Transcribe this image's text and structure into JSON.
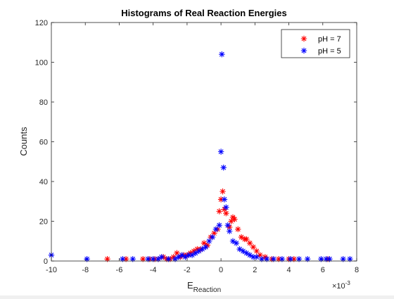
{
  "chart_data": {
    "type": "scatter",
    "title": "Histograms of Real Reaction Energies",
    "ylabel": "Counts",
    "xlabel_main": "E",
    "xlabel_sub": "Reaction",
    "x_multiplier_base": "×10",
    "x_multiplier_exp": "-3",
    "xlim": [
      -10,
      8
    ],
    "ylim": [
      0,
      120
    ],
    "xticks": [
      -10,
      -8,
      -6,
      -4,
      -2,
      0,
      2,
      4,
      6,
      8
    ],
    "yticks": [
      0,
      20,
      40,
      60,
      80,
      100,
      120
    ],
    "grid": false,
    "legend_position": "top-right",
    "marker": "*",
    "series": [
      {
        "name": "pH = 7",
        "color": "#ff0000",
        "points": [
          [
            -6.7,
            1
          ],
          [
            -5.6,
            1
          ],
          [
            -4.6,
            1
          ],
          [
            -4.2,
            1
          ],
          [
            -3.9,
            1
          ],
          [
            -3.7,
            1
          ],
          [
            -3.4,
            2
          ],
          [
            -3.2,
            1
          ],
          [
            -3.0,
            1
          ],
          [
            -2.8,
            2
          ],
          [
            -2.6,
            4
          ],
          [
            -2.4,
            2
          ],
          [
            -2.2,
            3
          ],
          [
            -2.0,
            3
          ],
          [
            -1.8,
            4
          ],
          [
            -1.6,
            5
          ],
          [
            -1.4,
            6
          ],
          [
            -1.2,
            6
          ],
          [
            -1.0,
            9
          ],
          [
            -0.8,
            8
          ],
          [
            -0.6,
            12
          ],
          [
            -0.4,
            14
          ],
          [
            -0.2,
            16
          ],
          [
            -0.1,
            25
          ],
          [
            0.0,
            31
          ],
          [
            0.1,
            35
          ],
          [
            0.2,
            26
          ],
          [
            0.3,
            24
          ],
          [
            0.5,
            17
          ],
          [
            0.6,
            20
          ],
          [
            0.7,
            22
          ],
          [
            0.8,
            21
          ],
          [
            1.0,
            16
          ],
          [
            1.2,
            12
          ],
          [
            1.4,
            11
          ],
          [
            1.5,
            11
          ],
          [
            1.7,
            9
          ],
          [
            1.9,
            7
          ],
          [
            2.1,
            5
          ],
          [
            2.3,
            3
          ],
          [
            2.6,
            2
          ],
          [
            3.0,
            1
          ],
          [
            3.4,
            1
          ],
          [
            4.0,
            1
          ],
          [
            4.3,
            1
          ],
          [
            6.3,
            1
          ]
        ]
      },
      {
        "name": "pH = 5",
        "color": "#0000ff",
        "points": [
          [
            -10.0,
            3
          ],
          [
            -7.9,
            1
          ],
          [
            -5.8,
            1
          ],
          [
            -5.2,
            1
          ],
          [
            -4.3,
            1
          ],
          [
            -4.0,
            1
          ],
          [
            -3.7,
            1
          ],
          [
            -3.5,
            2
          ],
          [
            -3.1,
            1
          ],
          [
            -2.7,
            1
          ],
          [
            -2.5,
            2
          ],
          [
            -2.3,
            3
          ],
          [
            -2.1,
            2
          ],
          [
            -1.9,
            3
          ],
          [
            -1.7,
            3
          ],
          [
            -1.5,
            4
          ],
          [
            -1.3,
            5
          ],
          [
            -1.1,
            6
          ],
          [
            -0.9,
            7
          ],
          [
            -0.7,
            10
          ],
          [
            -0.5,
            12
          ],
          [
            -0.3,
            16
          ],
          [
            -0.1,
            18
          ],
          [
            0.0,
            55
          ],
          [
            0.05,
            104
          ],
          [
            0.15,
            47
          ],
          [
            0.2,
            31
          ],
          [
            0.3,
            27
          ],
          [
            0.4,
            18
          ],
          [
            0.5,
            15
          ],
          [
            0.7,
            10
          ],
          [
            0.9,
            9
          ],
          [
            1.1,
            6
          ],
          [
            1.3,
            5
          ],
          [
            1.5,
            4
          ],
          [
            1.7,
            3
          ],
          [
            1.9,
            2
          ],
          [
            2.1,
            2
          ],
          [
            2.4,
            1
          ],
          [
            2.7,
            1
          ],
          [
            3.1,
            1
          ],
          [
            3.6,
            1
          ],
          [
            4.1,
            1
          ],
          [
            4.6,
            1
          ],
          [
            5.1,
            1
          ],
          [
            5.9,
            1
          ],
          [
            6.2,
            1
          ],
          [
            6.4,
            1
          ],
          [
            7.2,
            1
          ],
          [
            7.6,
            1
          ]
        ]
      }
    ]
  }
}
